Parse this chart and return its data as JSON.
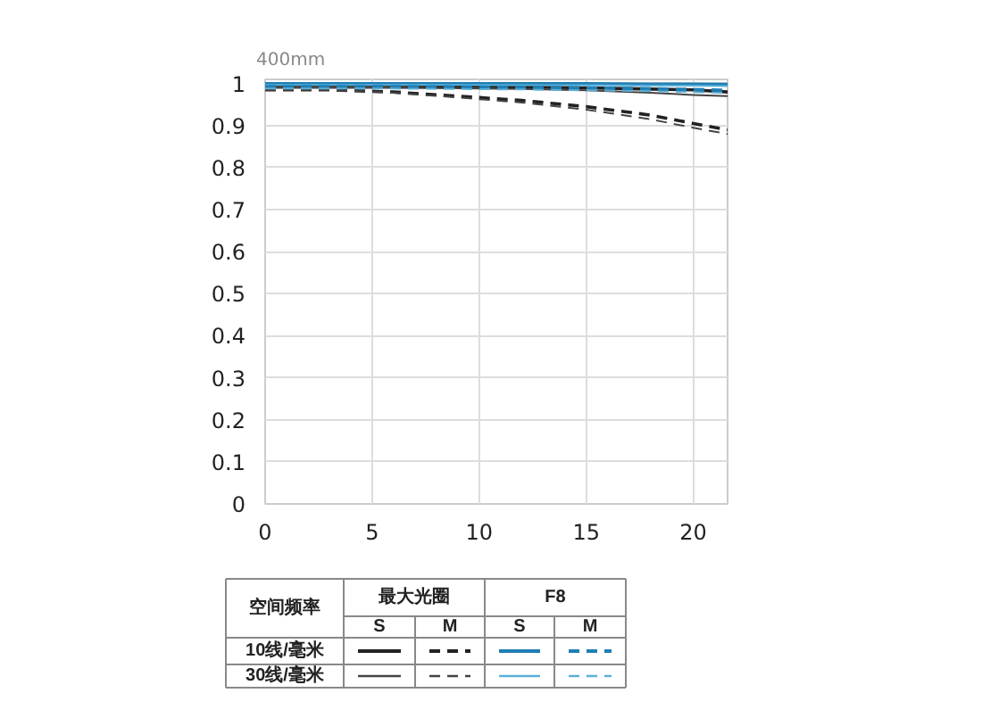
{
  "chart_data": {
    "type": "line",
    "title": "400mm",
    "x": [
      0,
      3,
      6,
      9,
      12,
      15,
      18,
      20,
      21.6
    ],
    "series": [
      {
        "color": "#222222",
        "line_style": "solid",
        "values": [
          0.995,
          0.995,
          0.995,
          0.994,
          0.992,
          0.99,
          0.987,
          0.985,
          0.98
        ]
      },
      {
        "color": "#222222",
        "line_style": "dashed",
        "values": [
          0.985,
          0.985,
          0.98,
          0.97,
          0.96,
          0.945,
          0.925,
          0.905,
          0.89
        ]
      },
      {
        "color": "#1f7fb5",
        "line_style": "solid",
        "values": [
          1.0,
          1.0,
          1.0,
          1.0,
          1.0,
          1.0,
          0.999,
          0.999,
          0.998
        ]
      },
      {
        "color": "#1f7fb5",
        "line_style": "dashed",
        "values": [
          0.993,
          0.993,
          0.993,
          0.992,
          0.991,
          0.99,
          0.988,
          0.986,
          0.984
        ]
      },
      {
        "color": "#444444",
        "line_style": "solid",
        "values": [
          0.99,
          0.99,
          0.99,
          0.989,
          0.987,
          0.984,
          0.978,
          0.973,
          0.97
        ]
      },
      {
        "color": "#444444",
        "line_style": "dashed",
        "values": [
          0.985,
          0.985,
          0.978,
          0.967,
          0.955,
          0.938,
          0.915,
          0.895,
          0.88
        ]
      },
      {
        "color": "#5bb0d8",
        "line_style": "solid",
        "values": [
          0.997,
          0.997,
          0.997,
          0.997,
          0.996,
          0.996,
          0.995,
          0.995,
          0.994
        ]
      },
      {
        "color": "#5bb0d8",
        "line_style": "dashed",
        "values": [
          0.988,
          0.988,
          0.988,
          0.987,
          0.986,
          0.984,
          0.982,
          0.98,
          0.978
        ]
      }
    ],
    "xlim": [
      0,
      21.6
    ],
    "xticks": [
      0,
      5,
      10,
      15,
      20
    ],
    "ylim": [
      0,
      1.01
    ],
    "yticks": [
      0,
      0.1,
      0.2,
      0.3,
      0.4,
      0.5,
      0.6,
      0.7,
      0.8,
      0.9,
      1
    ],
    "grid": true,
    "annotations": [
      "空间频率",
      "最大光圈",
      "F8",
      "S",
      "M",
      "S",
      "M",
      "10线/毫米",
      "30线/毫米"
    ]
  }
}
